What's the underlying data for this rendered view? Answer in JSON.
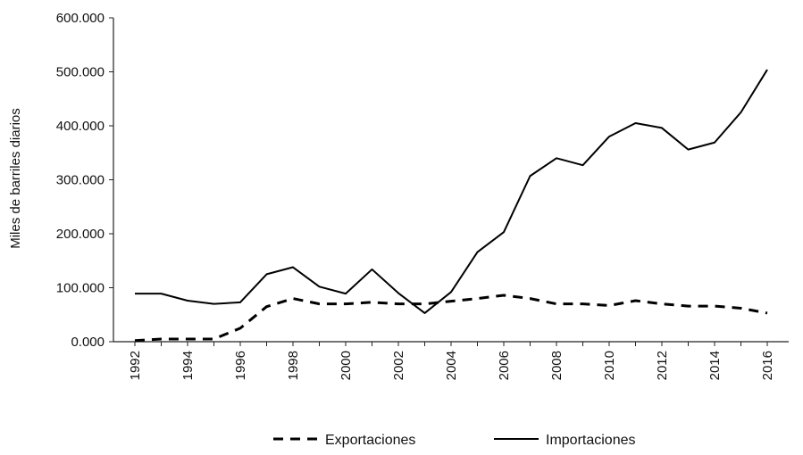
{
  "chart_data": {
    "type": "line",
    "title": "",
    "xlabel": "",
    "ylabel": "Miles de barriles diarios",
    "x": [
      1992,
      1993,
      1994,
      1995,
      1996,
      1997,
      1998,
      1999,
      2000,
      2001,
      2002,
      2003,
      2004,
      2005,
      2006,
      2007,
      2008,
      2009,
      2010,
      2011,
      2012,
      2013,
      2014,
      2015,
      2016
    ],
    "x_tick_labels": [
      "1992",
      "1994",
      "1996",
      "1998",
      "2000",
      "2002",
      "2004",
      "2006",
      "2008",
      "2010",
      "2012",
      "2014",
      "2016"
    ],
    "y_tick_labels": [
      "0.000",
      "100.000",
      "200.000",
      "300.000",
      "400.000",
      "500.000",
      "600.000"
    ],
    "ylim": [
      0,
      600
    ],
    "grid": false,
    "legend_position": "bottom",
    "series": [
      {
        "name": "Exportaciones",
        "style": "dashed",
        "color": "#000000",
        "values": [
          2,
          5,
          5,
          5,
          25,
          65,
          80,
          70,
          70,
          73,
          70,
          70,
          75,
          80,
          86,
          80,
          70,
          70,
          67,
          76,
          70,
          66,
          66,
          62,
          53
        ]
      },
      {
        "name": "Importaciones",
        "style": "solid",
        "color": "#000000",
        "values": [
          89,
          89,
          76,
          70,
          73,
          125,
          138,
          102,
          89,
          134,
          90,
          53,
          92,
          166,
          203,
          307,
          340,
          327,
          380,
          405,
          396,
          356,
          369,
          425,
          504
        ]
      }
    ]
  }
}
